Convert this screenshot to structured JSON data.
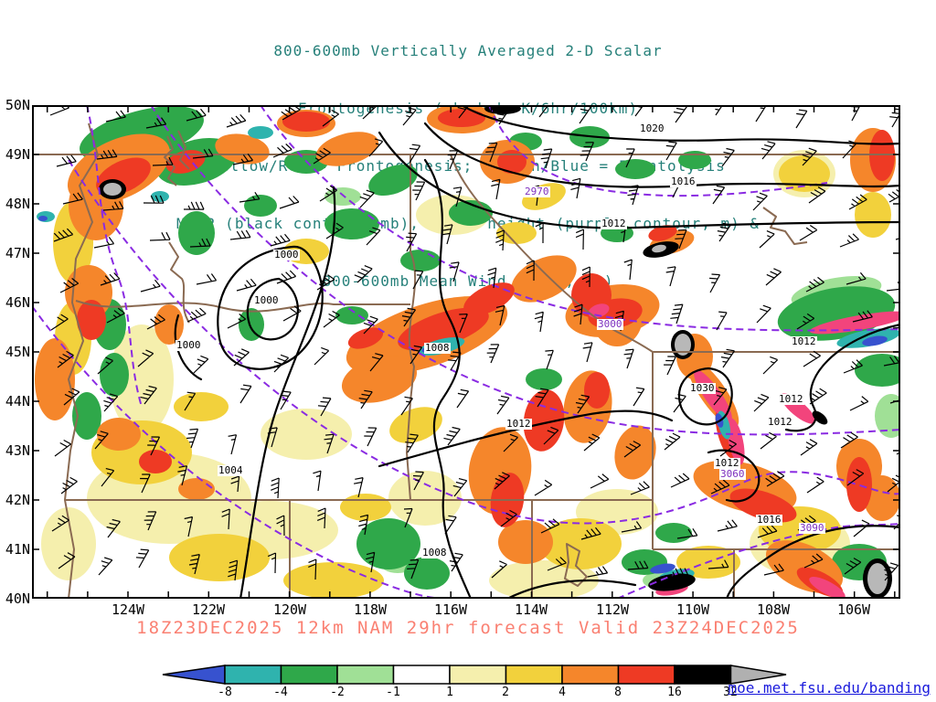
{
  "title": {
    "lines": [
      "800-600mb Vertically Averaged 2-D Scalar",
      "Frontogenesis (shaded, K/6hr/100km)",
      "Yellow/Red = Frontogenesis;  Green/Blue = Frontolysis",
      "MSLP (black contour, mb), 700mb height (purple contour, m) &",
      "800-600mb Mean Wind (barb, kt)"
    ]
  },
  "axes": {
    "lat": [
      "50N",
      "49N",
      "48N",
      "47N",
      "46N",
      "45N",
      "44N",
      "43N",
      "42N",
      "41N",
      "40N"
    ],
    "lon": [
      "124W",
      "122W",
      "120W",
      "118W",
      "116W",
      "114W",
      "112W",
      "110W",
      "108W",
      "106W"
    ]
  },
  "map": {
    "contour_labels": [
      {
        "text": "1020",
        "type": "mslp"
      },
      {
        "text": "1016",
        "type": "mslp"
      },
      {
        "text": "2970",
        "type": "height"
      },
      {
        "text": "1012",
        "type": "mslp"
      },
      {
        "text": "1000",
        "type": "mslp"
      },
      {
        "text": "1000",
        "type": "mslp"
      },
      {
        "text": "1000",
        "type": "mslp"
      },
      {
        "text": "3000",
        "type": "height"
      },
      {
        "text": "1008",
        "type": "mslp"
      },
      {
        "text": "1012",
        "type": "mslp"
      },
      {
        "text": "1030",
        "type": "mslp"
      },
      {
        "text": "1012",
        "type": "mslp"
      },
      {
        "text": "1012",
        "type": "mslp"
      },
      {
        "text": "1012",
        "type": "mslp"
      },
      {
        "text": "1004",
        "type": "mslp"
      },
      {
        "text": "1012",
        "type": "mslp"
      },
      {
        "text": "3060",
        "type": "height"
      },
      {
        "text": "1016",
        "type": "mslp"
      },
      {
        "text": "3090",
        "type": "height"
      },
      {
        "text": "1008",
        "type": "mslp"
      }
    ]
  },
  "colorbar": {
    "ticks": [
      "-8",
      "-4",
      "-2",
      "-1",
      "1",
      "2",
      "4",
      "8",
      "16",
      "32"
    ],
    "colors": [
      "#3752cf",
      "#2fb3ae",
      "#2fa84a",
      "#a0e096",
      "#ffffff",
      "#f5efad",
      "#f2d13c",
      "#f5862b",
      "#ee3a24",
      "#000000",
      "#b0b0b0"
    ]
  },
  "caption": {
    "text": "18Z23DEC2025 12km NAM 29hr forecast Valid 23Z24DEC2025",
    "color": "#fa8072"
  },
  "link": {
    "text": "moe.met.fsu.edu/banding"
  },
  "chart_data": {
    "type": "heatmap",
    "title": "800-600mb Vertically Averaged 2-D Scalar Frontogenesis (shaded, K/6hr/100km)",
    "field": "frontogenesis",
    "units": "K/6hr/100km",
    "interpretation": {
      "yellow_red": "Frontogenesis",
      "green_blue": "Frontolysis"
    },
    "overlays": [
      "MSLP (black contour, mb)",
      "700mb height (purple contour, m)",
      "800-600mb Mean Wind (barb, kt)"
    ],
    "x_axis": {
      "ticks": [
        "124W",
        "122W",
        "120W",
        "118W",
        "116W",
        "114W",
        "112W",
        "110W",
        "108W",
        "106W"
      ]
    },
    "y_axis": {
      "ticks": [
        "50N",
        "49N",
        "48N",
        "47N",
        "46N",
        "45N",
        "44N",
        "43N",
        "42N",
        "41N",
        "40N"
      ]
    },
    "shading_levels": [
      -8,
      -4,
      -2,
      -1,
      1,
      2,
      4,
      8,
      16,
      32
    ],
    "shading_colors": [
      "#3752cf",
      "#2fb3ae",
      "#2fa84a",
      "#a0e096",
      "#ffffff",
      "#f5efad",
      "#f2d13c",
      "#f5862b",
      "#ee3a24",
      "#000000",
      "#b0b0b0"
    ],
    "mslp_contour_labels_mb": [
      1000,
      1004,
      1008,
      1012,
      1016,
      1020,
      1030
    ],
    "height_contour_labels_m": [
      2970,
      3000,
      3060,
      3090
    ],
    "model": "12km NAM",
    "init_time": "18Z23DEC2025",
    "forecast_hour": "29hr",
    "valid_time": "23Z24DEC2025"
  }
}
